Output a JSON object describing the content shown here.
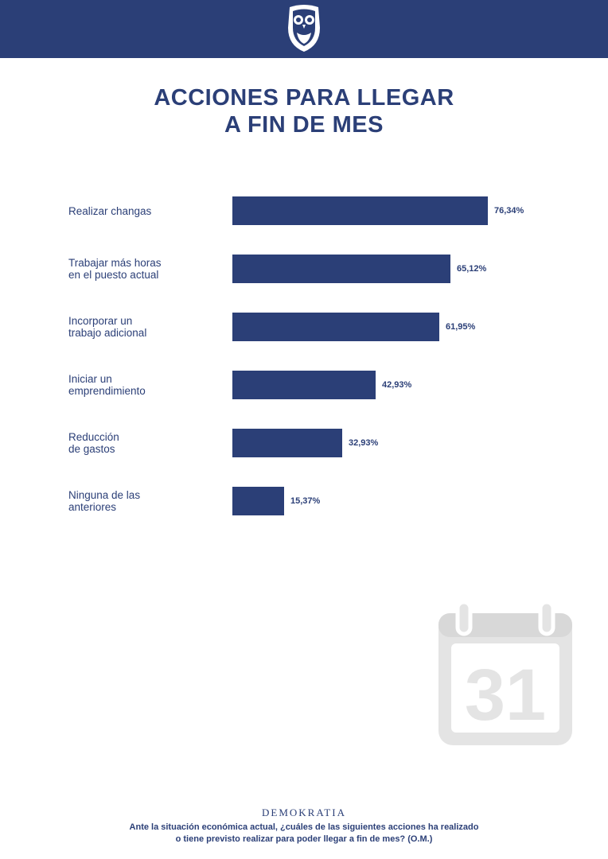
{
  "header": {
    "logo_icon": "owl-icon",
    "background_color": "#2b3f77"
  },
  "title_lines": [
    "ACCIONES PARA LLEGAR",
    "A FIN DE MES"
  ],
  "decoration": {
    "calendar_icon": "calendar-icon",
    "calendar_day": "31"
  },
  "footer": {
    "brand": "DEMOKRATIA",
    "question_lines": [
      "Ante la situación económica actual, ¿cuáles de las siguientes acciones ha realizado",
      "o tiene previsto realizar para poder llegar a fin de mes? (O.M.)"
    ]
  },
  "chart_data": {
    "type": "bar",
    "orientation": "horizontal",
    "title": "ACCIONES PARA LLEGAR A FIN DE MES",
    "categories": [
      [
        "Realizar changas"
      ],
      [
        "Trabajar más horas",
        "en el puesto actual"
      ],
      [
        "Incorporar un",
        "trabajo adicional"
      ],
      [
        "Iniciar un",
        "emprendimiento"
      ],
      [
        "Reducción",
        "de gastos"
      ],
      [
        "Ninguna de las",
        "anteriores"
      ]
    ],
    "values": [
      76.34,
      65.12,
      61.95,
      42.93,
      32.93,
      15.37
    ],
    "value_labels": [
      "76,34%",
      "65,12%",
      "61,95%",
      "42,93%",
      "32,93%",
      "15,37%"
    ],
    "unit": "%",
    "bar_color": "#2b3f77",
    "xlim": [
      0,
      100
    ],
    "grid": false,
    "legend": "none"
  }
}
